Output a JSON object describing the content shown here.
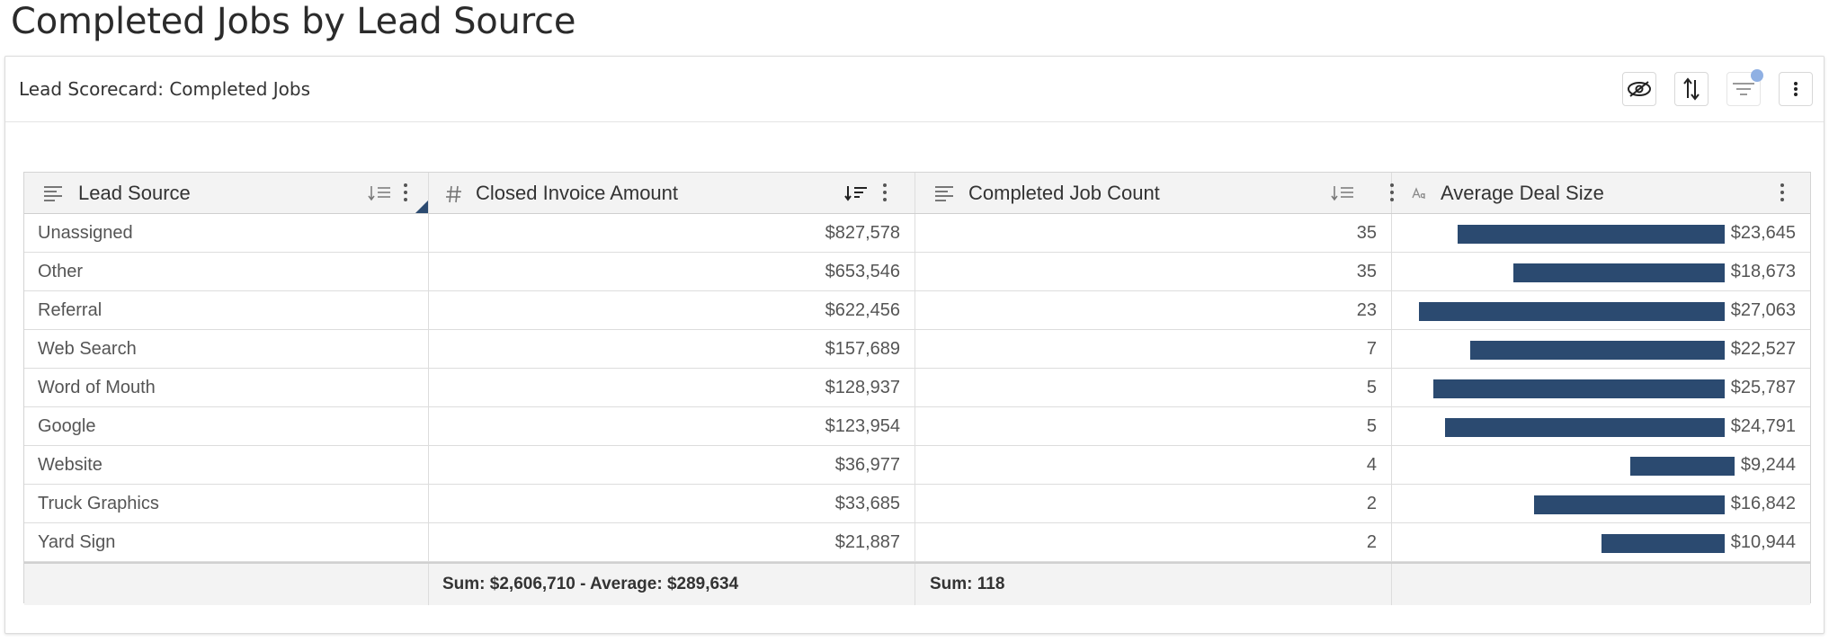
{
  "page": {
    "title": "Completed Jobs by Lead Source"
  },
  "card": {
    "title": "Lead Scorecard: Completed Jobs",
    "tools": [
      "eye-off-icon",
      "sort-arrows-icon",
      "filter-icon",
      "more-vertical-icon"
    ]
  },
  "colors": {
    "bar": "#2b4a70",
    "filter_dot": "#8fb0e3"
  },
  "table": {
    "columns": [
      {
        "label": "Lead Source",
        "icon": "text-lines-icon",
        "sort_icon": "sort-lines-icon"
      },
      {
        "label": "Closed Invoice Amount",
        "icon": "hash-icon",
        "sort_icon": "sort-desc-icon"
      },
      {
        "label": "Completed Job Count",
        "icon": "text-lines-icon",
        "sort_icon": "sort-lines-icon"
      },
      {
        "label": "Average Deal Size",
        "icon": "font-size-icon"
      }
    ],
    "rows": [
      {
        "source": "Unassigned",
        "amount": "$827,578",
        "count": "35",
        "avg": "$23,645",
        "avg_value": 23645
      },
      {
        "source": "Other",
        "amount": "$653,546",
        "count": "35",
        "avg": "$18,673",
        "avg_value": 18673
      },
      {
        "source": "Referral",
        "amount": "$622,456",
        "count": "23",
        "avg": "$27,063",
        "avg_value": 27063
      },
      {
        "source": "Web Search",
        "amount": "$157,689",
        "count": "7",
        "avg": "$22,527",
        "avg_value": 22527
      },
      {
        "source": "Word of Mouth",
        "amount": "$128,937",
        "count": "5",
        "avg": "$25,787",
        "avg_value": 25787
      },
      {
        "source": "Google",
        "amount": "$123,954",
        "count": "5",
        "avg": "$24,791",
        "avg_value": 24791
      },
      {
        "source": "Website",
        "amount": "$36,977",
        "count": "4",
        "avg": "$9,244",
        "avg_value": 9244
      },
      {
        "source": "Truck Graphics",
        "amount": "$33,685",
        "count": "2",
        "avg": "$16,842",
        "avg_value": 16842
      },
      {
        "source": "Yard Sign",
        "amount": "$21,887",
        "count": "2",
        "avg": "$10,944",
        "avg_value": 10944
      }
    ],
    "footer": {
      "amount": "Sum: $2,606,710 - Average: $289,634",
      "count": "Sum: 118"
    }
  }
}
